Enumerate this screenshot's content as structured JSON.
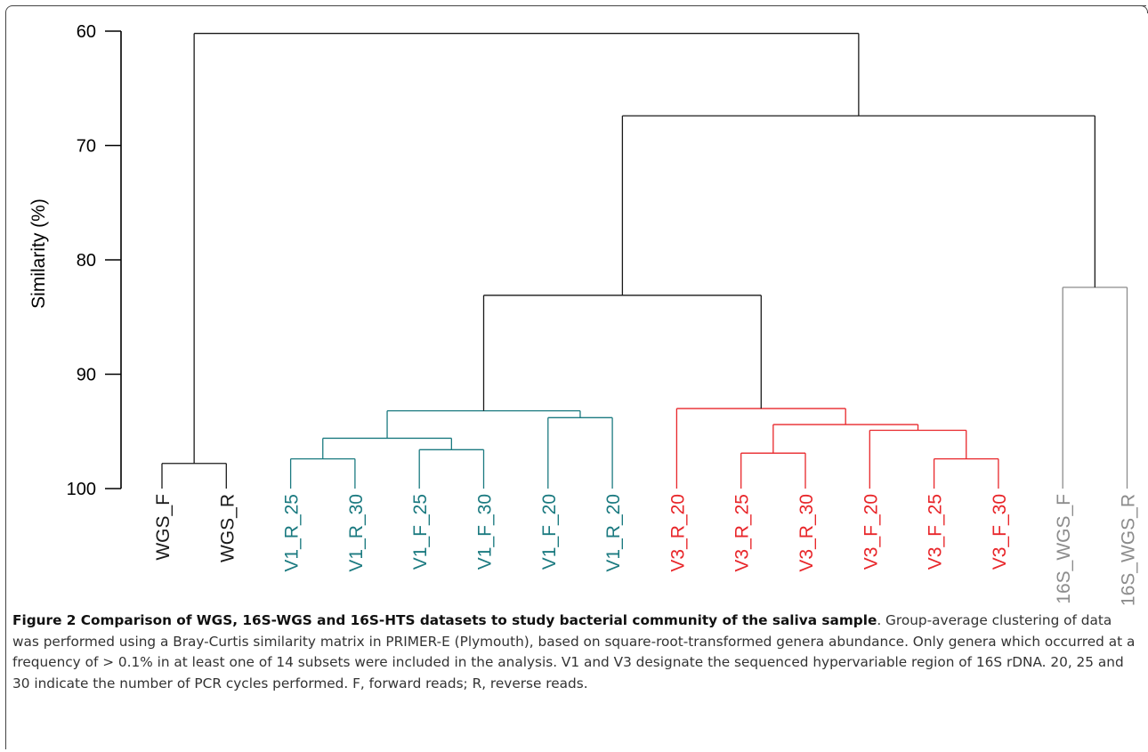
{
  "chart_data": {
    "type": "dendrogram",
    "ylabel": "Similarity (%)",
    "ylim": [
      60,
      100
    ],
    "yticks": [
      60,
      70,
      80,
      90,
      100
    ],
    "colors": {
      "axis": "#000000",
      "black": "#1a1a1a",
      "teal": "#1b7a80",
      "red": "#e8262a",
      "gray": "#8c8c8c"
    },
    "leaves": [
      {
        "label": "WGS_F",
        "color": "black"
      },
      {
        "label": "WGS_R",
        "color": "black"
      },
      {
        "label": "V1_R_25",
        "color": "teal"
      },
      {
        "label": "V1_R_30",
        "color": "teal"
      },
      {
        "label": "V1_F_25",
        "color": "teal"
      },
      {
        "label": "V1_F_30",
        "color": "teal"
      },
      {
        "label": "V1_F_20",
        "color": "teal"
      },
      {
        "label": "V1_R_20",
        "color": "teal"
      },
      {
        "label": "V3_R_20",
        "color": "red"
      },
      {
        "label": "V3_R_25",
        "color": "red"
      },
      {
        "label": "V3_R_30",
        "color": "red"
      },
      {
        "label": "V3_F_20",
        "color": "red"
      },
      {
        "label": "V3_F_25",
        "color": "red"
      },
      {
        "label": "V3_F_30",
        "color": "red"
      },
      {
        "label": "16S_WGS_F",
        "color": "gray"
      },
      {
        "label": "16S_WGS_R",
        "color": "gray"
      }
    ],
    "merges": [
      {
        "a": "L0",
        "b": "L1",
        "height": 97.8,
        "color": "black"
      },
      {
        "a": "L2",
        "b": "L3",
        "height": 97.4,
        "color": "teal"
      },
      {
        "a": "L4",
        "b": "L5",
        "height": 96.6,
        "color": "teal"
      },
      {
        "a": "M1",
        "b": "M2",
        "height": 95.6,
        "color": "teal"
      },
      {
        "a": "L6",
        "b": "L7",
        "height": 93.8,
        "color": "teal"
      },
      {
        "a": "M3",
        "b": "M4",
        "height": 93.2,
        "color": "teal"
      },
      {
        "a": "L9",
        "b": "L10",
        "height": 96.9,
        "color": "red"
      },
      {
        "a": "L12",
        "b": "L13",
        "height": 97.4,
        "color": "red"
      },
      {
        "a": "L11",
        "b": "M7",
        "height": 94.9,
        "color": "red"
      },
      {
        "a": "M6",
        "b": "M8",
        "height": 94.4,
        "color": "red"
      },
      {
        "a": "L8",
        "b": "M9",
        "height": 93.0,
        "color": "red"
      },
      {
        "a": "M5",
        "b": "M10",
        "height": 83.1,
        "color": "black"
      },
      {
        "a": "L14",
        "b": "L15",
        "height": 82.4,
        "color": "gray"
      },
      {
        "a": "M11",
        "b": "M12",
        "height": 67.4,
        "color": "black"
      },
      {
        "a": "M0",
        "b": "M13",
        "height": 60.2,
        "color": "black"
      }
    ]
  },
  "caption": {
    "bold": "Figure 2 Comparison of WGS, 16S-WGS and 16S-HTS datasets to study bacterial community of the saliva sample",
    "text": ". Group-average clustering of data was performed using a Bray-Curtis similarity matrix in PRIMER-E (Plymouth), based on square-root-transformed genera abundance. Only genera which occurred at a frequency of > 0.1% in at least one of 14 subsets were included in the analysis. V1 and V3 designate the sequenced hypervariable region of 16S rDNA. 20, 25 and 30 indicate the number of PCR cycles performed. F, forward reads; R, reverse reads."
  }
}
